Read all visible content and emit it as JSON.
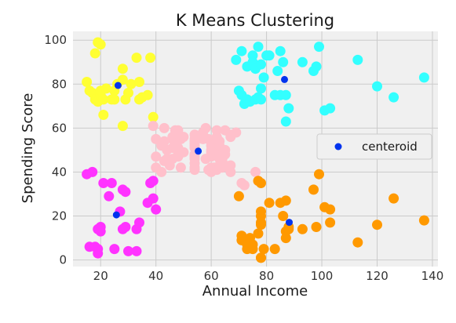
{
  "chart_data": {
    "type": "scatter",
    "title": "K Means Clustering",
    "xlabel": "Annual Income",
    "ylabel": "Spending Score",
    "xlim": [
      10,
      142
    ],
    "ylim": [
      -3,
      104
    ],
    "xticks": [
      20,
      40,
      60,
      80,
      100,
      120,
      140
    ],
    "yticks": [
      0,
      20,
      40,
      60,
      80,
      100
    ],
    "grid": true,
    "legend_position": "center-right",
    "colors": {
      "background": "#f0f0f0",
      "grid": "#cbcbcb",
      "yellow": "#ffff33",
      "cyan": "#33ffff",
      "pink": "#ffc0cb",
      "magenta": "#ff33ff",
      "orange": "#ff9900",
      "centroid": "#0033ee"
    },
    "series": [
      {
        "color_key": "yellow",
        "points": [
          [
            15,
            81
          ],
          [
            16,
            77
          ],
          [
            17,
            76
          ],
          [
            18,
            73
          ],
          [
            18,
            94
          ],
          [
            19,
            72
          ],
          [
            19,
            99
          ],
          [
            20,
            75
          ],
          [
            20,
            77
          ],
          [
            20,
            98
          ],
          [
            21,
            73
          ],
          [
            21,
            66
          ],
          [
            22,
            78
          ],
          [
            24,
            73
          ],
          [
            25,
            73
          ],
          [
            25,
            77
          ],
          [
            26,
            80
          ],
          [
            28,
            82
          ],
          [
            28,
            61
          ],
          [
            28,
            87
          ],
          [
            29,
            73
          ],
          [
            30,
            76
          ],
          [
            31,
            80
          ],
          [
            33,
            92
          ],
          [
            34,
            73
          ],
          [
            34,
            81
          ],
          [
            35,
            74
          ],
          [
            37,
            75
          ],
          [
            38,
            92
          ],
          [
            39,
            65
          ]
        ]
      },
      {
        "color_key": "cyan",
        "points": [
          [
            69,
            91
          ],
          [
            70,
            77
          ],
          [
            71,
            95
          ],
          [
            71,
            75
          ],
          [
            72,
            71
          ],
          [
            73,
            88
          ],
          [
            73,
            73
          ],
          [
            74,
            72
          ],
          [
            75,
            93
          ],
          [
            75,
            90
          ],
          [
            76,
            87
          ],
          [
            76,
            73
          ],
          [
            77,
            97
          ],
          [
            77,
            74
          ],
          [
            78,
            89
          ],
          [
            78,
            78
          ],
          [
            78,
            73
          ],
          [
            79,
            83
          ],
          [
            80,
            93
          ],
          [
            81,
            93
          ],
          [
            83,
            75
          ],
          [
            84,
            86
          ],
          [
            85,
            95
          ],
          [
            85,
            75
          ],
          [
            86,
            90
          ],
          [
            87,
            63
          ],
          [
            87,
            75
          ],
          [
            88,
            69
          ],
          [
            93,
            90
          ],
          [
            97,
            86
          ],
          [
            98,
            88
          ],
          [
            99,
            97
          ],
          [
            101,
            68
          ],
          [
            103,
            69
          ],
          [
            113,
            91
          ],
          [
            120,
            79
          ],
          [
            126,
            74
          ],
          [
            137,
            83
          ]
        ]
      },
      {
        "color_key": "pink",
        "points": [
          [
            39,
            61
          ],
          [
            40,
            47
          ],
          [
            40,
            55
          ],
          [
            40,
            42
          ],
          [
            42,
            52
          ],
          [
            43,
            60
          ],
          [
            43,
            54
          ],
          [
            43,
            45
          ],
          [
            44,
            46
          ],
          [
            44,
            50
          ],
          [
            46,
            51
          ],
          [
            46,
            46
          ],
          [
            46,
            56
          ],
          [
            46,
            55
          ],
          [
            47,
            52
          ],
          [
            47,
            59
          ],
          [
            48,
            51
          ],
          [
            48,
            59
          ],
          [
            48,
            50
          ],
          [
            48,
            48
          ],
          [
            48,
            47
          ],
          [
            49,
            55
          ],
          [
            49,
            42
          ],
          [
            50,
            49
          ],
          [
            50,
            56
          ],
          [
            54,
            47
          ],
          [
            54,
            54
          ],
          [
            54,
            53
          ],
          [
            54,
            48
          ],
          [
            54,
            52
          ],
          [
            54,
            42
          ],
          [
            54,
            51
          ],
          [
            54,
            55
          ],
          [
            54,
            41
          ],
          [
            54,
            44
          ],
          [
            54,
            57
          ],
          [
            54,
            46
          ],
          [
            57,
            58
          ],
          [
            57,
            55
          ],
          [
            58,
            60
          ],
          [
            58,
            46
          ],
          [
            59,
            55
          ],
          [
            59,
            41
          ],
          [
            60,
            49
          ],
          [
            60,
            40
          ],
          [
            60,
            42
          ],
          [
            60,
            52
          ],
          [
            60,
            47
          ],
          [
            60,
            50
          ],
          [
            61,
            42
          ],
          [
            61,
            49
          ],
          [
            62,
            41
          ],
          [
            62,
            48
          ],
          [
            62,
            59
          ],
          [
            62,
            55
          ],
          [
            62,
            56
          ],
          [
            62,
            42
          ],
          [
            63,
            50
          ],
          [
            63,
            46
          ],
          [
            63,
            43
          ],
          [
            63,
            48
          ],
          [
            63,
            52
          ],
          [
            63,
            54
          ],
          [
            64,
            42
          ],
          [
            64,
            46
          ],
          [
            65,
            48
          ],
          [
            65,
            50
          ],
          [
            65,
            43
          ],
          [
            65,
            59
          ],
          [
            67,
            43
          ],
          [
            67,
            57
          ],
          [
            67,
            56
          ],
          [
            67,
            40
          ],
          [
            69,
            58
          ],
          [
            71,
            35
          ],
          [
            76,
            40
          ],
          [
            72,
            34
          ],
          [
            42,
            40
          ],
          [
            45,
            43
          ]
        ]
      },
      {
        "color_key": "magenta",
        "points": [
          [
            15,
            39
          ],
          [
            16,
            6
          ],
          [
            17,
            40
          ],
          [
            18,
            6
          ],
          [
            19,
            3
          ],
          [
            19,
            14
          ],
          [
            20,
            15
          ],
          [
            20,
            13
          ],
          [
            21,
            35
          ],
          [
            23,
            29
          ],
          [
            24,
            35
          ],
          [
            25,
            5
          ],
          [
            28,
            14
          ],
          [
            28,
            32
          ],
          [
            29,
            31
          ],
          [
            30,
            4
          ],
          [
            33,
            4
          ],
          [
            33,
            14
          ],
          [
            34,
            17
          ],
          [
            37,
            26
          ],
          [
            38,
            35
          ],
          [
            39,
            36
          ],
          [
            39,
            28
          ],
          [
            40,
            23
          ],
          [
            29,
            15
          ],
          [
            19,
            5
          ],
          [
            27,
            22
          ]
        ]
      },
      {
        "color_key": "orange",
        "points": [
          [
            70,
            29
          ],
          [
            71,
            11
          ],
          [
            71,
            9
          ],
          [
            73,
            5
          ],
          [
            73,
            7
          ],
          [
            74,
            10
          ],
          [
            75,
            5
          ],
          [
            77,
            12
          ],
          [
            77,
            36
          ],
          [
            78,
            22
          ],
          [
            78,
            17
          ],
          [
            78,
            20
          ],
          [
            78,
            16
          ],
          [
            78,
            1
          ],
          [
            78,
            1
          ],
          [
            78,
            35
          ],
          [
            79,
            5
          ],
          [
            81,
            26
          ],
          [
            85,
            26
          ],
          [
            86,
            20
          ],
          [
            87,
            27
          ],
          [
            87,
            13
          ],
          [
            87,
            10
          ],
          [
            88,
            15
          ],
          [
            88,
            14
          ],
          [
            93,
            14
          ],
          [
            97,
            32
          ],
          [
            98,
            15
          ],
          [
            99,
            39
          ],
          [
            101,
            24
          ],
          [
            103,
            17
          ],
          [
            103,
            23
          ],
          [
            113,
            8
          ],
          [
            120,
            16
          ],
          [
            126,
            28
          ],
          [
            137,
            18
          ],
          [
            75,
            7
          ],
          [
            83,
            5
          ]
        ]
      }
    ],
    "centroids": {
      "legend_label": "centeroid",
      "points": [
        [
          26.3,
          79.4
        ],
        [
          86.5,
          82.1
        ],
        [
          55.3,
          49.5
        ],
        [
          25.7,
          20.5
        ],
        [
          88.2,
          17.1
        ]
      ]
    }
  }
}
